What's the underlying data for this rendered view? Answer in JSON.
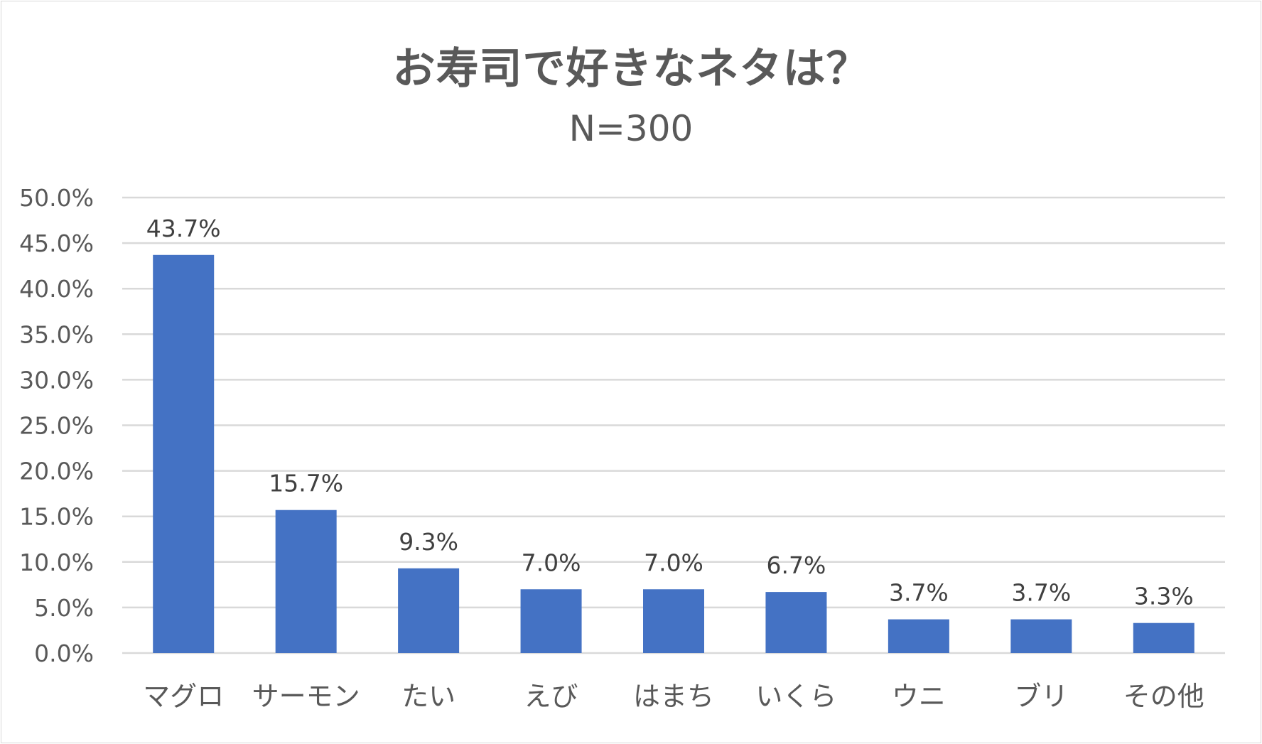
{
  "chart_data": {
    "type": "bar",
    "title": "お寿司で好きなネタは？",
    "subtitle": "N=300",
    "categories": [
      "マグロ",
      "サーモン",
      "たい",
      "えび",
      "はまち",
      "いくら",
      "ウニ",
      "ブリ",
      "その他"
    ],
    "values": [
      43.7,
      15.7,
      9.3,
      7.0,
      7.0,
      6.7,
      3.7,
      3.7,
      3.3
    ],
    "data_labels": [
      "43.7%",
      "15.7%",
      "9.3%",
      "7.0%",
      "7.0%",
      "6.7%",
      "3.7%",
      "3.7%",
      "3.3%"
    ],
    "yticks": [
      "0.0%",
      "5.0%",
      "10.0%",
      "15.0%",
      "20.0%",
      "25.0%",
      "30.0%",
      "35.0%",
      "40.0%",
      "45.0%",
      "50.0%"
    ],
    "ylim": [
      0,
      50
    ],
    "ystep": 5,
    "xlabel": "",
    "ylabel": "",
    "grid": true,
    "legend": "none",
    "colors": {
      "bar": "#4472c4",
      "grid": "#d9d9d9",
      "text": "#595959",
      "label": "#404040"
    }
  }
}
